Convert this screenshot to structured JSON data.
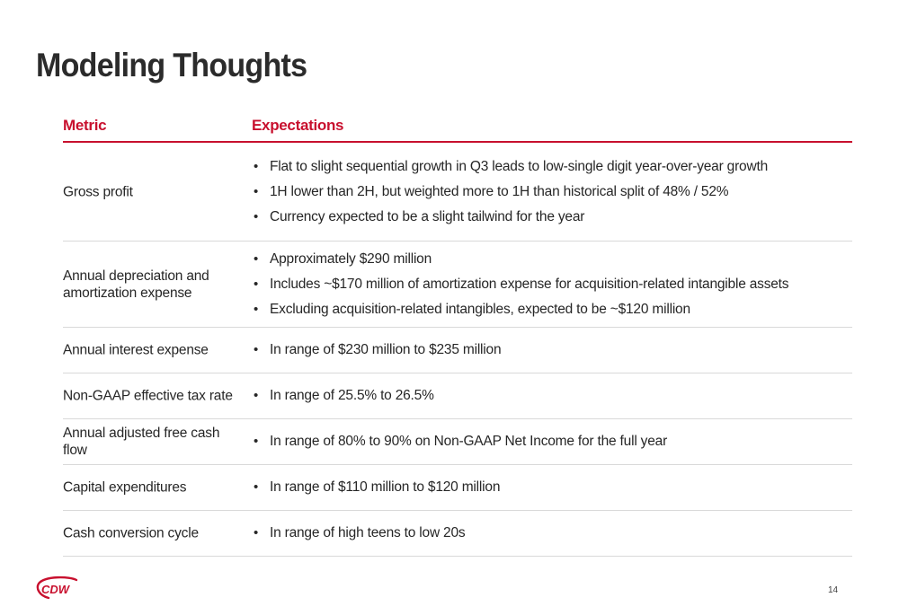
{
  "slide": {
    "title": "Modeling Thoughts",
    "page_number": "14"
  },
  "table": {
    "headers": {
      "metric": "Metric",
      "expectations": "Expectations"
    },
    "rows": [
      {
        "metric": "Gross profit",
        "expectations": [
          "Flat to slight sequential growth in Q3 leads to low-single digit year-over-year growth",
          "1H lower than 2H, but weighted more to 1H than historical split of 48% / 52%",
          "Currency expected to be a slight tailwind for the year"
        ]
      },
      {
        "metric": "Annual depreciation and amortization expense",
        "expectations": [
          "Approximately $290 million",
          "Includes ~$170 million of amortization expense for acquisition-related intangible assets",
          "Excluding acquisition-related intangibles, expected to be ~$120 million"
        ]
      },
      {
        "metric": "Annual interest expense",
        "expectations": [
          "In range of $230 million to $235 million"
        ]
      },
      {
        "metric": "Non-GAAP effective tax rate",
        "expectations": [
          "In range of 25.5% to 26.5%"
        ]
      },
      {
        "metric": "Annual adjusted free cash flow",
        "expectations": [
          "In range of 80% to 90% on Non-GAAP Net Income for the full year"
        ]
      },
      {
        "metric": "Capital expenditures",
        "expectations": [
          "In range of $110 million to $120 million"
        ]
      },
      {
        "metric": "Cash conversion cycle",
        "expectations": [
          "In range of high teens to low 20s"
        ]
      }
    ]
  },
  "logo": {
    "text": "CDW",
    "icon": "cdw-logo",
    "color": "#c8102e"
  },
  "colors": {
    "accent": "#c8102e",
    "title": "#2b2b2b",
    "divider": "#d9d9d9"
  }
}
